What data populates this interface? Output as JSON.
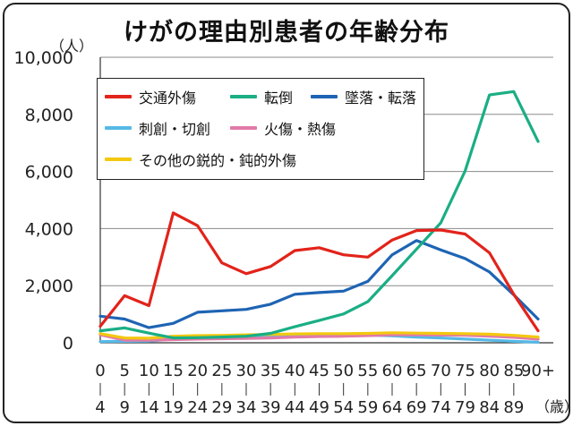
{
  "chart_data": {
    "type": "line",
    "title": "けがの理由別患者の年齢分布",
    "y_unit": "（人）",
    "x_unit": "（歳）",
    "ylim": [
      0,
      10000
    ],
    "yticks": [
      "0",
      "2,000",
      "4,000",
      "6,000",
      "8,000",
      "10,000"
    ],
    "grid": "horizontal",
    "legend_position": "top-left",
    "categories_top": [
      "0",
      "5",
      "10",
      "15",
      "20",
      "25",
      "30",
      "35",
      "40",
      "45",
      "50",
      "55",
      "60",
      "65",
      "70",
      "75",
      "80",
      "85",
      "90+"
    ],
    "categories_bottom": [
      "4",
      "9",
      "14",
      "19",
      "24",
      "29",
      "34",
      "39",
      "44",
      "49",
      "54",
      "59",
      "64",
      "69",
      "74",
      "79",
      "84",
      "89",
      ""
    ],
    "categories": [
      "0-4",
      "5-9",
      "10-14",
      "15-19",
      "20-24",
      "25-29",
      "30-34",
      "35-39",
      "40-44",
      "45-49",
      "50-54",
      "55-59",
      "60-64",
      "65-69",
      "70-74",
      "75-79",
      "80-84",
      "85-89",
      "90+"
    ],
    "series": [
      {
        "name": "交通外傷",
        "color": "#e2231a",
        "values": [
          580,
          1650,
          1300,
          4550,
          4100,
          2800,
          2420,
          2670,
          3230,
          3330,
          3080,
          3000,
          3600,
          3930,
          3950,
          3810,
          3150,
          1700,
          420
        ]
      },
      {
        "name": "転倒",
        "color": "#1aae84",
        "values": [
          420,
          520,
          340,
          170,
          180,
          200,
          230,
          330,
          560,
          780,
          1010,
          1440,
          2350,
          3280,
          4200,
          6020,
          8680,
          8800,
          7050
        ]
      },
      {
        "name": "墜落・転落",
        "color": "#1e64b4",
        "values": [
          930,
          830,
          530,
          680,
          1070,
          1120,
          1170,
          1350,
          1700,
          1760,
          1810,
          2150,
          3080,
          3580,
          3250,
          2950,
          2480,
          1680,
          830
        ]
      },
      {
        "name": "刺創・切創",
        "color": "#55b9e6",
        "values": [
          40,
          50,
          60,
          130,
          170,
          190,
          210,
          260,
          290,
          300,
          300,
          270,
          240,
          200,
          170,
          130,
          90,
          50,
          20
        ]
      },
      {
        "name": "火傷・熱傷",
        "color": "#e27aa8",
        "values": [
          280,
          90,
          90,
          110,
          130,
          140,
          150,
          170,
          200,
          220,
          230,
          250,
          280,
          280,
          270,
          260,
          230,
          190,
          130
        ]
      },
      {
        "name": "その他の鋭的・鈍的外傷",
        "color": "#f3c80f",
        "values": [
          320,
          170,
          160,
          230,
          250,
          260,
          280,
          290,
          310,
          320,
          320,
          330,
          350,
          340,
          330,
          320,
          300,
          260,
          200
        ]
      }
    ]
  }
}
